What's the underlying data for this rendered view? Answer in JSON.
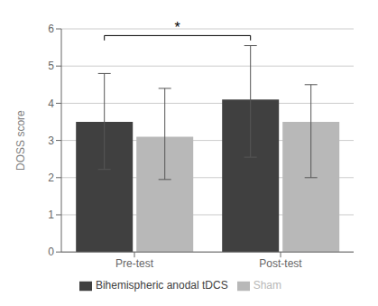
{
  "chart_data": {
    "type": "bar",
    "categories": [
      "Pre-test",
      "Post-test"
    ],
    "series": [
      {
        "name": "Bihemispheric anodal tDCS",
        "color": "#404040",
        "values": [
          3.5,
          4.1
        ],
        "yerr_upper": [
          1.3,
          1.45
        ],
        "yerr_lower": [
          1.28,
          1.55
        ]
      },
      {
        "name": "Sham",
        "color": "#b8b8b8",
        "values": [
          3.1,
          3.5
        ],
        "yerr_upper": [
          1.3,
          1.0
        ],
        "yerr_lower": [
          1.15,
          1.5
        ]
      }
    ],
    "ylabel": "DOSS score",
    "ylim": [
      0,
      6
    ],
    "yticks": [
      0,
      1,
      2,
      3,
      4,
      5,
      6
    ],
    "grid": true,
    "legend": "bottom",
    "annotations": [
      {
        "text": "*",
        "from": "Pre-test",
        "to": "Post-test",
        "series": "Bihemispheric anodal tDCS",
        "y": 5.82,
        "drop": 0.13
      }
    ]
  }
}
